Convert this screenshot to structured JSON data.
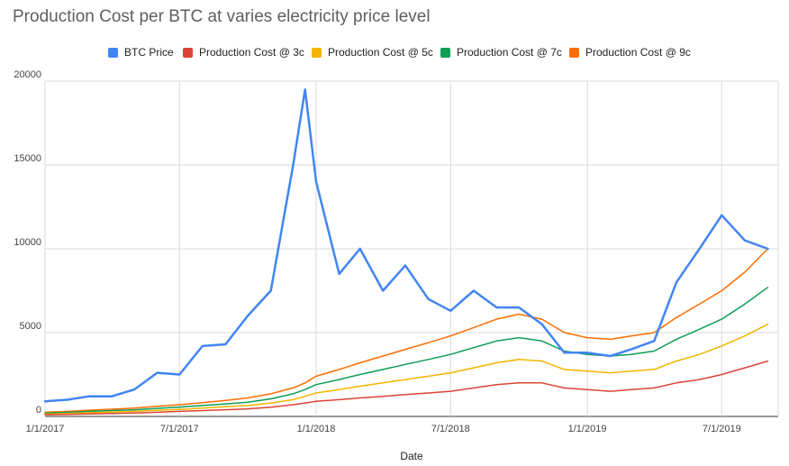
{
  "chart_data": {
    "type": "line",
    "title": "Production Cost per BTC at varies electricity price level",
    "xlabel": "Date",
    "ylabel": "",
    "ylim": [
      0,
      20000
    ],
    "yticks": [
      "0",
      "5000",
      "10000",
      "15000",
      "20000"
    ],
    "xticks": [
      "1/1/2017",
      "7/1/2017",
      "1/1/2018",
      "7/1/2018",
      "1/1/2019",
      "7/1/2019"
    ],
    "grid": true,
    "legend_position": "top",
    "x": [
      "2017-01-01",
      "2017-02-01",
      "2017-03-01",
      "2017-04-01",
      "2017-05-01",
      "2017-06-01",
      "2017-07-01",
      "2017-08-01",
      "2017-09-01",
      "2017-10-01",
      "2017-11-01",
      "2017-12-01",
      "2017-12-17",
      "2018-01-01",
      "2018-02-01",
      "2018-03-01",
      "2018-04-01",
      "2018-05-01",
      "2018-06-01",
      "2018-07-01",
      "2018-08-01",
      "2018-09-01",
      "2018-10-01",
      "2018-11-01",
      "2018-12-01",
      "2019-01-01",
      "2019-02-01",
      "2019-03-01",
      "2019-04-01",
      "2019-05-01",
      "2019-06-01",
      "2019-07-01",
      "2019-08-01",
      "2019-09-01"
    ],
    "series": [
      {
        "name": "BTC Price",
        "color": "#4285f4",
        "values": [
          900,
          1000,
          1200,
          1200,
          1600,
          2600,
          2500,
          4200,
          4300,
          6000,
          7500,
          15000,
          19500,
          14000,
          8500,
          10000,
          7500,
          9000,
          7000,
          6300,
          7500,
          6500,
          6500,
          5500,
          3800,
          3800,
          3600,
          4000,
          4500,
          8000,
          10000,
          12000,
          10500,
          10000
        ]
      },
      {
        "name": "Production Cost @ 3c",
        "color": "#db4437",
        "values": [
          100,
          120,
          150,
          180,
          200,
          250,
          300,
          350,
          400,
          450,
          550,
          700,
          800,
          900,
          1000,
          1100,
          1200,
          1300,
          1400,
          1500,
          1700,
          1900,
          2000,
          2000,
          1700,
          1600,
          1500,
          1600,
          1700,
          2000,
          2200,
          2500,
          2900,
          3300
        ]
      },
      {
        "name": "Production Cost @ 5c",
        "color": "#f4b400",
        "values": [
          150,
          180,
          220,
          260,
          300,
          360,
          420,
          500,
          580,
          650,
          800,
          1000,
          1200,
          1400,
          1600,
          1800,
          2000,
          2200,
          2400,
          2600,
          2900,
          3200,
          3400,
          3300,
          2800,
          2700,
          2600,
          2700,
          2800,
          3300,
          3700,
          4200,
          4800,
          5500
        ]
      },
      {
        "name": "Production Cost @ 7c",
        "color": "#0f9d58",
        "values": [
          200,
          250,
          300,
          350,
          400,
          480,
          560,
          650,
          750,
          850,
          1050,
          1350,
          1600,
          1900,
          2200,
          2500,
          2800,
          3100,
          3400,
          3700,
          4100,
          4500,
          4700,
          4500,
          3900,
          3700,
          3600,
          3700,
          3900,
          4600,
          5200,
          5800,
          6700,
          7700
        ]
      },
      {
        "name": "Production Cost @ 9c",
        "color": "#ff6d01",
        "values": [
          250,
          300,
          370,
          430,
          500,
          600,
          700,
          820,
          950,
          1100,
          1350,
          1700,
          2000,
          2400,
          2800,
          3200,
          3600,
          4000,
          4400,
          4800,
          5300,
          5800,
          6100,
          5800,
          5000,
          4700,
          4600,
          4800,
          5000,
          5900,
          6700,
          7500,
          8600,
          10000
        ]
      }
    ]
  }
}
